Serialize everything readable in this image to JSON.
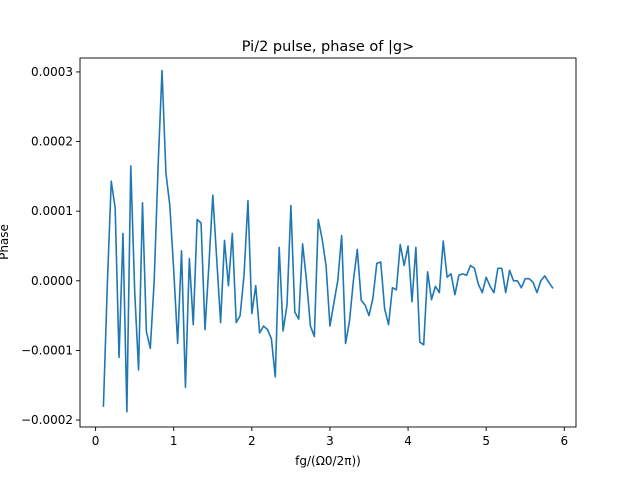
{
  "chart_data": {
    "type": "line",
    "title": "Pi/2 pulse, phase of |g>",
    "xlabel": "fg/(Ω0/2π))",
    "ylabel": "Phase",
    "xlim": [
      -0.2,
      6.15
    ],
    "ylim": [
      -0.00021,
      0.00032
    ],
    "x_ticks": [
      0,
      1,
      2,
      3,
      4,
      5,
      6
    ],
    "x_tick_labels": [
      "0",
      "1",
      "2",
      "3",
      "4",
      "5",
      "6"
    ],
    "y_ticks": [
      -0.0002,
      -0.0001,
      0.0,
      0.0001,
      0.0002,
      0.0003
    ],
    "y_tick_labels": [
      "−0.0002",
      "−0.0001",
      "0.0000",
      "0.0001",
      "0.0002",
      "0.0003"
    ],
    "grid": false,
    "series": [
      {
        "color": "#1f77b4",
        "x": [
          0.1,
          0.15,
          0.2,
          0.25,
          0.3,
          0.35,
          0.4,
          0.45,
          0.5,
          0.55,
          0.6,
          0.65,
          0.7,
          0.75,
          0.8,
          0.85,
          0.9,
          0.95,
          1.0,
          1.05,
          1.1,
          1.15,
          1.2,
          1.25,
          1.3,
          1.35,
          1.4,
          1.45,
          1.5,
          1.55,
          1.6,
          1.65,
          1.7,
          1.75,
          1.8,
          1.85,
          1.9,
          1.95,
          2.0,
          2.05,
          2.1,
          2.15,
          2.2,
          2.25,
          2.3,
          2.35,
          2.4,
          2.45,
          2.5,
          2.55,
          2.6,
          2.65,
          2.7,
          2.75,
          2.8,
          2.85,
          2.9,
          2.95,
          3.0,
          3.05,
          3.1,
          3.15,
          3.2,
          3.25,
          3.3,
          3.35,
          3.4,
          3.45,
          3.5,
          3.55,
          3.6,
          3.65,
          3.7,
          3.75,
          3.8,
          3.85,
          3.9,
          3.95,
          4.0,
          4.05,
          4.1,
          4.15,
          4.2,
          4.25,
          4.3,
          4.35,
          4.4,
          4.45,
          4.5,
          4.55,
          4.6,
          4.65,
          4.7,
          4.75,
          4.8,
          4.85,
          4.9,
          4.95,
          5.0,
          5.05,
          5.1,
          5.15,
          5.2,
          5.25,
          5.3,
          5.35,
          5.4,
          5.45,
          5.5,
          5.55,
          5.6,
          5.65,
          5.7,
          5.75,
          5.8,
          5.85
        ],
        "y": [
          -0.00018,
          -5e-06,
          0.000143,
          0.000105,
          -0.00011,
          6.8e-05,
          -0.000188,
          0.000165,
          -1.5e-05,
          -0.000128,
          0.000112,
          -7.3e-05,
          -9.7e-05,
          0.0,
          0.000165,
          0.000302,
          0.000155,
          0.000108,
          1.5e-05,
          -9e-05,
          4.3e-05,
          -0.000153,
          3.2e-05,
          -6.3e-05,
          8.8e-05,
          8.3e-05,
          -7e-05,
          2.2e-05,
          0.000123,
          3.2e-05,
          -6e-05,
          5.8e-05,
          -7e-06,
          6.8e-05,
          -6e-05,
          -5e-05,
          8e-06,
          0.000115,
          -4.7e-05,
          -7e-06,
          -7.5e-05,
          -6.5e-05,
          -7e-05,
          -8.3e-05,
          -0.000138,
          4.8e-05,
          -7.2e-05,
          -3.5e-05,
          0.000108,
          -4.5e-05,
          -5.5e-05,
          5.3e-05,
          0.0,
          -6.5e-05,
          -8e-05,
          8.8e-05,
          6e-05,
          2.2e-05,
          -6.5e-05,
          -3.2e-05,
          0.0,
          6.5e-05,
          -9e-05,
          -5.8e-05,
          0.0,
          4.5e-05,
          -2.8e-05,
          -3.5e-05,
          -5e-05,
          -2.5e-05,
          2.5e-05,
          2.7e-05,
          -4e-05,
          -6.3e-05,
          -1e-05,
          -1.3e-05,
          5.2e-05,
          2.2e-05,
          5e-05,
          -3e-05,
          4.8e-05,
          -8.8e-05,
          -9.2e-05,
          1.3e-05,
          -2.7e-05,
          -8e-06,
          -1.7e-05,
          5.7e-05,
          5e-06,
          1e-05,
          -2e-05,
          8e-06,
          1e-05,
          8e-06,
          2.2e-05,
          1.8e-05,
          -5e-06,
          -1.7e-05,
          5e-06,
          -8e-06,
          -1.7e-05,
          1.8e-05,
          1.8e-05,
          -1.7e-05,
          1.5e-05,
          0.0,
          0.0,
          -1e-05,
          3e-06,
          3e-06,
          -2e-06,
          -1.7e-05,
          0.0,
          7e-06,
          -2e-06,
          -1e-05
        ]
      }
    ]
  }
}
